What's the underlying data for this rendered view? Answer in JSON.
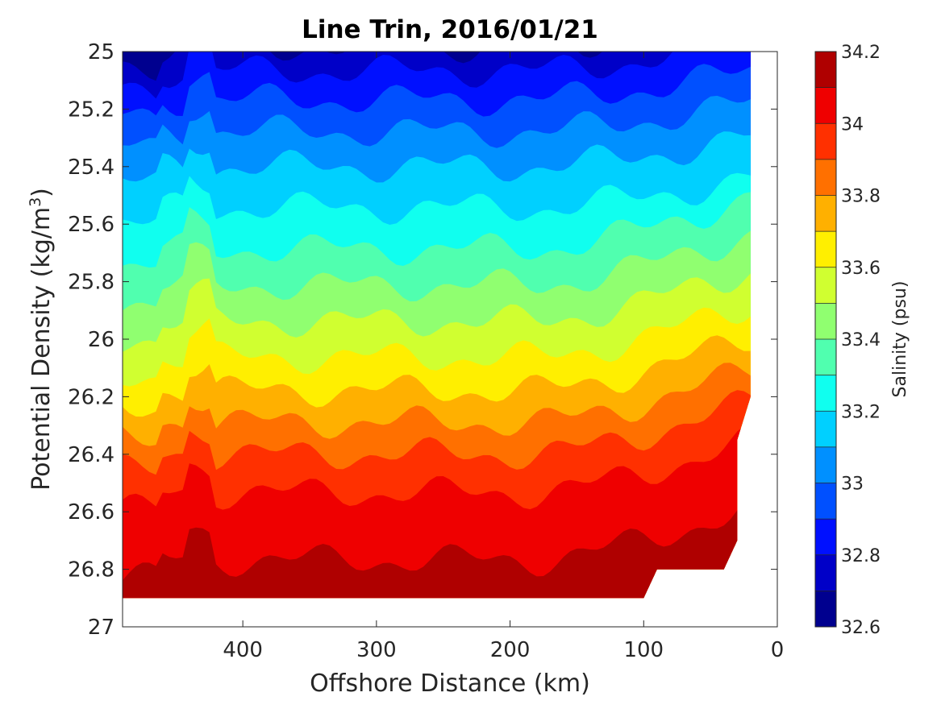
{
  "chart_data": {
    "type": "contour",
    "title": "Line Trin, 2016/01/21",
    "xlabel": "Offshore Distance (km)",
    "ylabel_main": "Potential Density (kg/m",
    "ylabel_sup": "3",
    "ylabel_close": ")",
    "xlim": [
      490,
      0
    ],
    "ylim": [
      27,
      25
    ],
    "y_reversed": true,
    "x_reversed": true,
    "x_ticks": [
      400,
      300,
      200,
      100,
      0
    ],
    "x_tick_labels": [
      "400",
      "300",
      "200",
      "100",
      "0"
    ],
    "y_ticks": [
      25,
      25.2,
      25.4,
      25.6,
      25.8,
      26,
      26.2,
      26.4,
      26.6,
      26.8,
      27
    ],
    "y_tick_labels": [
      "25",
      "25.2",
      "25.4",
      "25.6",
      "25.8",
      "26",
      "26.2",
      "26.4",
      "26.6",
      "26.8",
      "27"
    ],
    "data_extent": {
      "x_min": 20,
      "x_max": 490,
      "y_min": 25,
      "y_max": 26.9
    },
    "colorbar": {
      "label": "Salinity (psu)",
      "vmin": 32.6,
      "vmax": 34.2,
      "ticks": [
        34.2,
        34,
        33.8,
        33.6,
        33.4,
        33.2,
        33,
        32.8,
        32.6
      ],
      "tick_labels": [
        "34.2",
        "34",
        "33.8",
        "33.6",
        "33.4",
        "33.2",
        "33",
        "32.8",
        "32.6"
      ],
      "levels": [
        32.6,
        32.7,
        32.8,
        32.9,
        33.0,
        33.1,
        33.2,
        33.3,
        33.4,
        33.5,
        33.6,
        33.7,
        33.8,
        33.9,
        34.0,
        34.1,
        34.2
      ],
      "colors": [
        "#00008f",
        "#0000c8",
        "#0010ff",
        "#0050ff",
        "#0090ff",
        "#00d0ff",
        "#10ffef",
        "#50ffaf",
        "#90ff70",
        "#d0ff30",
        "#ffef00",
        "#ffb000",
        "#ff7000",
        "#ff3000",
        "#ef0000",
        "#af0000"
      ]
    },
    "salinity_profiles": {
      "density": [
        25.0,
        25.1,
        25.2,
        25.3,
        25.4,
        25.5,
        25.6,
        25.7,
        25.8,
        25.9,
        26.0,
        26.1,
        26.2,
        26.3,
        26.4,
        26.5,
        26.6,
        26.7,
        26.8,
        26.9
      ],
      "salinity": [
        32.72,
        32.84,
        32.93,
        33.02,
        33.1,
        33.17,
        33.24,
        33.31,
        33.39,
        33.47,
        33.55,
        33.63,
        33.72,
        33.81,
        33.9,
        33.98,
        34.04,
        34.08,
        34.11,
        34.13
      ]
    },
    "grid": false,
    "colorbar_position": "right"
  }
}
